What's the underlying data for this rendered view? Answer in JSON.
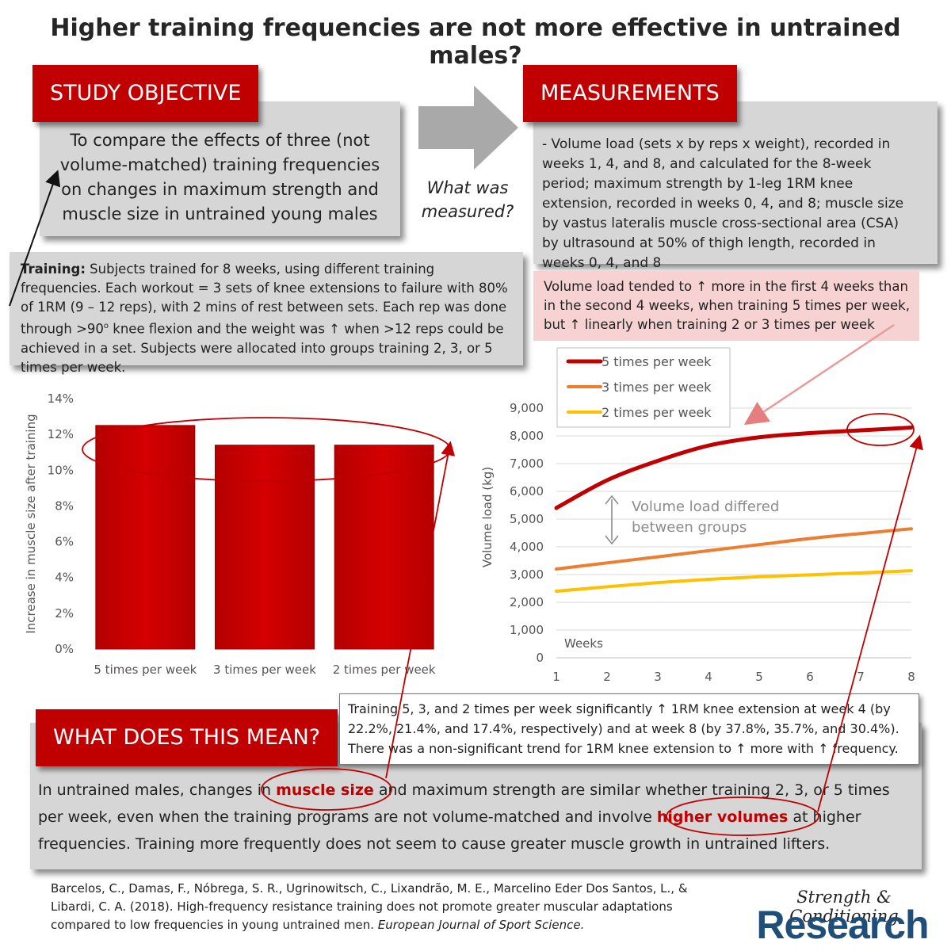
{
  "title": "Higher training frequencies are not more effective in untrained males?",
  "objective": {
    "label": "STUDY OBJECTIVE",
    "text": "To compare the effects of three (not volume-matched) training frequencies on changes in maximum strength and muscle size in untrained young males"
  },
  "arrow_question": "What was measured?",
  "measurements": {
    "label": "MEASUREMENTS",
    "text": "- Volume load (sets x by reps x weight), recorded in weeks 1, 4, and 8, and calculated for the 8-week period; maximum strength by 1-leg 1RM knee extension, recorded in weeks 0, 4, and 8; muscle size by vastus lateralis muscle cross-sectional area (CSA) by ultrasound at 50% of thigh length, recorded in weeks 0, 4, and 8"
  },
  "training": {
    "bold": "Training:",
    "text_1": " Subjects trained for 8 weeks, using different training frequencies. Each workout = 3 sets of knee extensions to failure with 80% of 1RM (9 – 12 reps), with 2 mins of rest between sets. Each rep was done through >90",
    "superscript": "o",
    "text_2": " knee flexion and the weight was ↑ when >12 reps could be achieved in a set. Subjects were allocated into groups training 2, 3, or 5 times per week."
  },
  "volume_note": "Volume load tended to ↑ more in the first 4 weeks than in the second 4 weeks, when training 5 times per week, but ↑ linearly when training 2 or 3 times per week",
  "line_annotation": [
    "Volume load differed",
    "between groups"
  ],
  "strength_note": "Training 5, 3, and 2 times per week significantly ↑ 1RM knee extension at week 4 (by 22.2%, 21.4%, and 17.4%, respectively) and at week 8 (by 37.8%, 35.7%, and 30.4%). There was a non-significant trend for 1RM knee extension to ↑ more with ↑ frequency.",
  "meaning": {
    "label": "WHAT DOES THIS MEAN?",
    "part1": "In untrained males, changes in ",
    "hl1": "muscle size",
    "part2": " and maximum strength are similar whether training 2, 3, or 5 times per week, even when the training programs are not volume-matched and involve ",
    "hl2": "higher volumes",
    "part3": " at higher frequencies. Training more frequently does not seem to cause greater muscle growth in untrained lifters."
  },
  "reference": {
    "text": "Barcelos, C., Damas, F., Nóbrega, S. R., Ugrinowitsch, C., Lixandrão, M. E., Marcelino Eder Dos Santos, L., & Libardi, C. A. (2018). High-frequency resistance training does not promote greater muscular adaptations compared to low frequencies in young untrained men. ",
    "journal": "European Journal of Sport Science."
  },
  "brand": {
    "line1": "Strength & Conditioning",
    "line2": "Research"
  },
  "colors": {
    "accent": "#c00000",
    "five": "#c00000",
    "three": "#ed7d31",
    "two": "#ffc000",
    "brand": "#1f4e79"
  },
  "chart_data": [
    {
      "type": "bar",
      "ylabel": "Increase in muscle size after training",
      "categories": [
        "5 times per week",
        "3 times per week",
        "2 times per week"
      ],
      "values": [
        12.5,
        11.4,
        11.4
      ],
      "ylim": [
        0,
        14
      ],
      "yticks": [
        "0%",
        "2%",
        "4%",
        "6%",
        "8%",
        "10%",
        "12%",
        "14%"
      ],
      "grid": false
    },
    {
      "type": "line",
      "ylabel": "Volume load (kg)",
      "xlabel": "Weeks",
      "x": [
        1,
        2,
        3,
        4,
        5,
        6,
        7,
        8
      ],
      "ylim": [
        0,
        9000
      ],
      "yticks": [
        "0",
        "1,000",
        "2,000",
        "3,000",
        "4,000",
        "5,000",
        "6,000",
        "7,000",
        "8,000",
        "9,000"
      ],
      "legend_position": "top-left",
      "grid": true,
      "series": [
        {
          "name": "5 times per week",
          "values": [
            5400,
            6400,
            7100,
            7650,
            7950,
            8100,
            8200,
            8300
          ]
        },
        {
          "name": "3 times per week",
          "values": [
            3200,
            3420,
            3640,
            3860,
            4080,
            4300,
            4480,
            4650
          ]
        },
        {
          "name": "2 times per week",
          "values": [
            2400,
            2560,
            2710,
            2830,
            2920,
            2990,
            3060,
            3140
          ]
        }
      ]
    }
  ]
}
